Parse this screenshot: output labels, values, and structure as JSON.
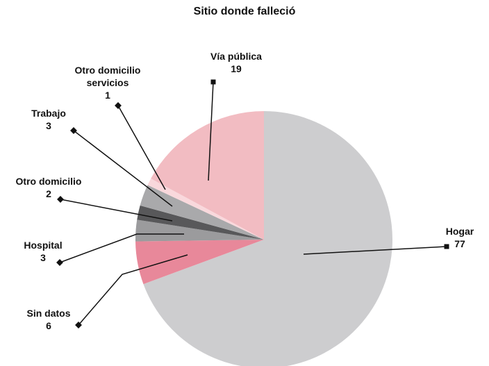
{
  "chart_data": {
    "type": "pie",
    "title": "Sitio donde falleció",
    "categories": [
      "Hogar",
      "Sin datos",
      "Hospital",
      "Otro domicilio",
      "Trabajo",
      "Otro domicilio servicios",
      "Vía pública"
    ],
    "values": [
      77,
      6,
      3,
      2,
      3,
      1,
      19
    ],
    "colors": [
      "#cdcdcf",
      "#e8889a",
      "#9b9b9d",
      "#58585a",
      "#a9a9ab",
      "#f9d8dc",
      "#f2bcc2"
    ]
  }
}
